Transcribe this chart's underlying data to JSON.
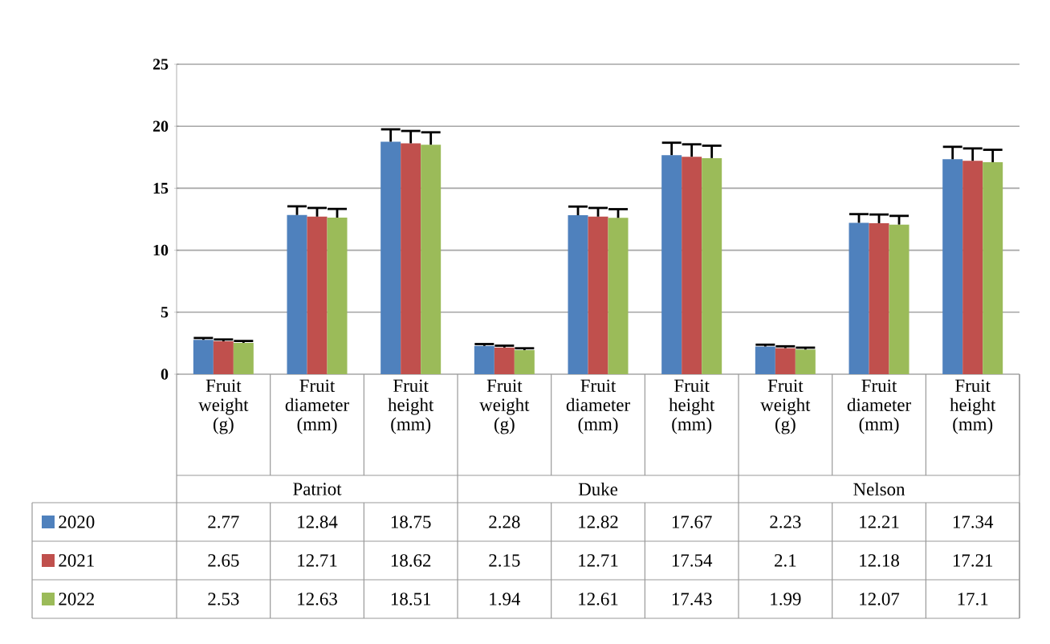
{
  "chart_data": {
    "type": "bar",
    "categories": [
      "Fruit weight (g)",
      "Fruit diameter (mm)",
      "Fruit height (mm)",
      "Fruit weight (g)",
      "Fruit diameter (mm)",
      "Fruit height (mm)",
      "Fruit weight (g)",
      "Fruit diameter (mm)",
      "Fruit height (mm)"
    ],
    "series": [
      {
        "name": "2020",
        "color": "#4f81bd",
        "values": [
          2.77,
          12.84,
          18.75,
          2.28,
          12.82,
          17.67,
          2.23,
          12.21,
          17.34
        ],
        "errors": [
          [
            2.77,
            2.92
          ],
          [
            12.84,
            13.54
          ],
          [
            18.75,
            19.75
          ],
          [
            2.28,
            2.43
          ],
          [
            12.82,
            13.52
          ],
          [
            17.67,
            18.67
          ],
          [
            2.23,
            2.38
          ],
          [
            12.21,
            12.91
          ],
          [
            17.34,
            18.34
          ]
        ]
      },
      {
        "name": "2021",
        "color": "#c0504d",
        "values": [
          2.65,
          12.71,
          18.62,
          2.15,
          12.71,
          17.54,
          2.1,
          12.18,
          17.21
        ],
        "errors": [
          [
            2.65,
            2.8
          ],
          [
            12.71,
            13.41
          ],
          [
            18.62,
            19.62
          ],
          [
            2.15,
            2.3
          ],
          [
            12.71,
            13.41
          ],
          [
            17.54,
            18.54
          ],
          [
            2.1,
            2.25
          ],
          [
            12.18,
            12.88
          ],
          [
            17.21,
            18.21
          ]
        ]
      },
      {
        "name": "2022",
        "color": "#9bbb59",
        "values": [
          2.53,
          12.63,
          18.51,
          1.94,
          12.61,
          17.43,
          1.99,
          12.07,
          17.1
        ],
        "errors": [
          [
            2.53,
            2.68
          ],
          [
            12.63,
            13.33
          ],
          [
            18.51,
            19.51
          ],
          [
            1.94,
            2.09
          ],
          [
            12.61,
            13.31
          ],
          [
            17.43,
            18.43
          ],
          [
            1.99,
            2.14
          ],
          [
            12.07,
            12.77
          ],
          [
            17.1,
            18.1
          ]
        ]
      }
    ],
    "annotations": [
      "Patriot",
      "Duke",
      "Nelson"
    ],
    "ylim": [
      0,
      25
    ],
    "yticks": [
      0,
      5,
      10,
      15,
      20,
      25
    ],
    "grid": "y",
    "legend": "bottom",
    "data_labels": true
  }
}
